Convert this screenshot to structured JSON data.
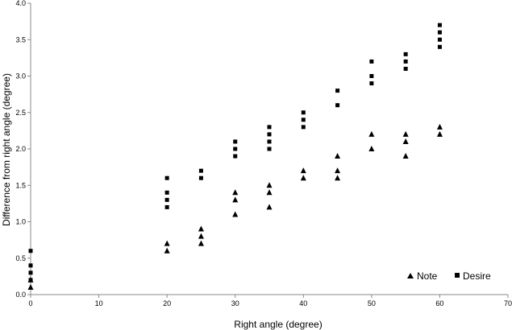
{
  "chart_data": {
    "type": "scatter",
    "title": "",
    "xlabel": "Right angle (degree)",
    "ylabel": "Difference from right angle (degree)",
    "xlim": [
      0,
      70
    ],
    "ylim": [
      0,
      4.0
    ],
    "x_ticks": [
      0,
      10,
      20,
      30,
      40,
      50,
      60,
      70
    ],
    "y_ticks": [
      "0.0",
      "0.5",
      "1.0",
      "1.5",
      "2.0",
      "2.5",
      "3.0",
      "3.5",
      "4.0"
    ],
    "grid": false,
    "legend_position": "bottom-right",
    "series": [
      {
        "name": "Note",
        "marker": "triangle",
        "color": "#000000",
        "points": [
          [
            0,
            0.1
          ],
          [
            0,
            0.2
          ],
          [
            20,
            0.6
          ],
          [
            20,
            0.7
          ],
          [
            25,
            0.7
          ],
          [
            25,
            0.8
          ],
          [
            25,
            0.9
          ],
          [
            30,
            1.1
          ],
          [
            30,
            1.3
          ],
          [
            30,
            1.4
          ],
          [
            35,
            1.2
          ],
          [
            35,
            1.4
          ],
          [
            35,
            1.5
          ],
          [
            40,
            1.6
          ],
          [
            40,
            1.7
          ],
          [
            45,
            1.6
          ],
          [
            45,
            1.7
          ],
          [
            45,
            1.9
          ],
          [
            50,
            2.0
          ],
          [
            50,
            2.2
          ],
          [
            55,
            1.9
          ],
          [
            55,
            2.1
          ],
          [
            55,
            2.2
          ],
          [
            60,
            2.2
          ],
          [
            60,
            2.3
          ]
        ]
      },
      {
        "name": "Desire",
        "marker": "square",
        "color": "#000000",
        "points": [
          [
            0,
            0.2
          ],
          [
            0,
            0.3
          ],
          [
            0,
            0.4
          ],
          [
            0,
            0.6
          ],
          [
            20,
            1.2
          ],
          [
            20,
            1.3
          ],
          [
            20,
            1.4
          ],
          [
            20,
            1.6
          ],
          [
            25,
            1.6
          ],
          [
            25,
            1.7
          ],
          [
            30,
            1.9
          ],
          [
            30,
            2.0
          ],
          [
            30,
            2.1
          ],
          [
            35,
            2.0
          ],
          [
            35,
            2.1
          ],
          [
            35,
            2.2
          ],
          [
            35,
            2.3
          ],
          [
            40,
            2.3
          ],
          [
            40,
            2.4
          ],
          [
            40,
            2.5
          ],
          [
            45,
            2.6
          ],
          [
            45,
            2.8
          ],
          [
            50,
            2.9
          ],
          [
            50,
            3.0
          ],
          [
            50,
            3.2
          ],
          [
            55,
            3.1
          ],
          [
            55,
            3.2
          ],
          [
            55,
            3.3
          ],
          [
            60,
            3.4
          ],
          [
            60,
            3.5
          ],
          [
            60,
            3.6
          ],
          [
            60,
            3.7
          ]
        ]
      }
    ]
  }
}
